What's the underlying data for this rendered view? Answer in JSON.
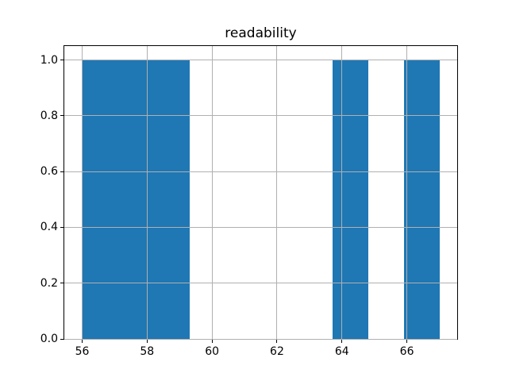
{
  "chart_data": {
    "type": "bar",
    "subtype": "histogram",
    "title": "readability",
    "xlabel": "",
    "ylabel": "",
    "bin_edges": [
      56.0,
      57.1,
      58.2,
      59.3,
      60.4,
      61.5,
      62.6,
      63.7,
      64.8,
      65.9,
      67.0
    ],
    "counts": [
      1,
      1,
      1,
      0,
      0,
      0,
      0,
      1,
      0,
      1
    ],
    "xlim": [
      55.45,
      67.55
    ],
    "ylim": [
      0,
      1.05
    ],
    "xticks": [
      56,
      58,
      60,
      62,
      64,
      66
    ],
    "xtick_labels": [
      "56",
      "58",
      "60",
      "62",
      "64",
      "66"
    ],
    "ytick_labels": [
      "0.0",
      "0.2",
      "0.4",
      "0.6",
      "0.8",
      "1.0"
    ],
    "yticks": [
      0.0,
      0.2,
      0.4,
      0.6,
      0.8,
      1.0
    ],
    "grid": true,
    "grid_above_bars": true,
    "legend": false,
    "bar_color": "#1f77b4",
    "grid_color": "#b0b0b0",
    "spine_color": "#000000",
    "text_color": "#000000",
    "background_color": "#ffffff"
  }
}
